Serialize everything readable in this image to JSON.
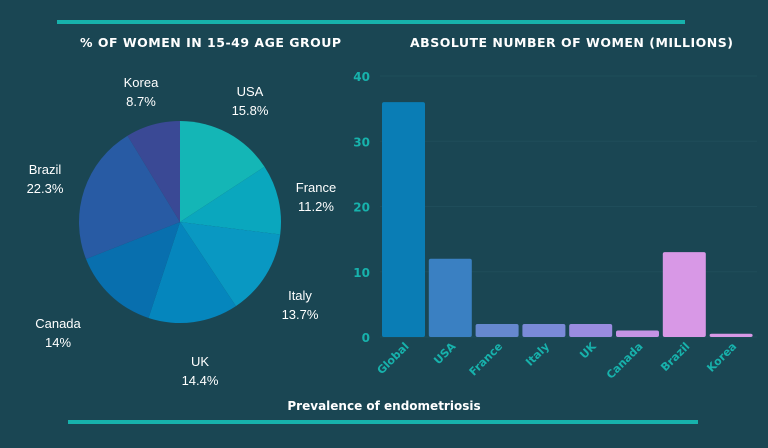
{
  "chart_data": [
    {
      "type": "pie",
      "title": "% OF WOMEN IN 15-49 AGE GROUP",
      "slices": [
        {
          "label": "USA",
          "value": 15.8,
          "display": "15.8%",
          "color": "#14b6b6"
        },
        {
          "label": "France",
          "value": 11.2,
          "display": "11.2%",
          "color": "#0aa7be"
        },
        {
          "label": "Italy",
          "value": 13.7,
          "display": "13.7%",
          "color": "#0998c2"
        },
        {
          "label": "UK",
          "value": 14.4,
          "display": "14.4%",
          "color": "#0586bd"
        },
        {
          "label": "Canada",
          "value": 14,
          "display": "14%",
          "color": "#086fae"
        },
        {
          "label": "Brazil",
          "value": 22.3,
          "display": "22.3%",
          "color": "#285ba4"
        },
        {
          "label": "Korea",
          "value": 8.7,
          "display": "8.7%",
          "color": "#3a4995"
        }
      ]
    },
    {
      "type": "bar",
      "title": "ABSOLUTE NUMBER OF WOMEN (MILLIONS)",
      "categories": [
        "Global",
        "USA",
        "France",
        "Italy",
        "UK",
        "Canada",
        "Brazil",
        "Korea"
      ],
      "values": [
        36,
        12,
        2,
        2,
        2,
        1,
        13,
        0.5
      ],
      "colors": [
        "#0a7db5",
        "#3a80c2",
        "#6688cf",
        "#7a8ad8",
        "#9a8ce0",
        "#c493e4",
        "#d898e6",
        "#d898e6"
      ],
      "ylim": [
        0,
        40
      ],
      "yticks": [
        "0",
        "10",
        "20",
        "30",
        "40"
      ],
      "tick_color": "#17b2ac"
    }
  ],
  "footer": "Prevalence of endometriosis"
}
